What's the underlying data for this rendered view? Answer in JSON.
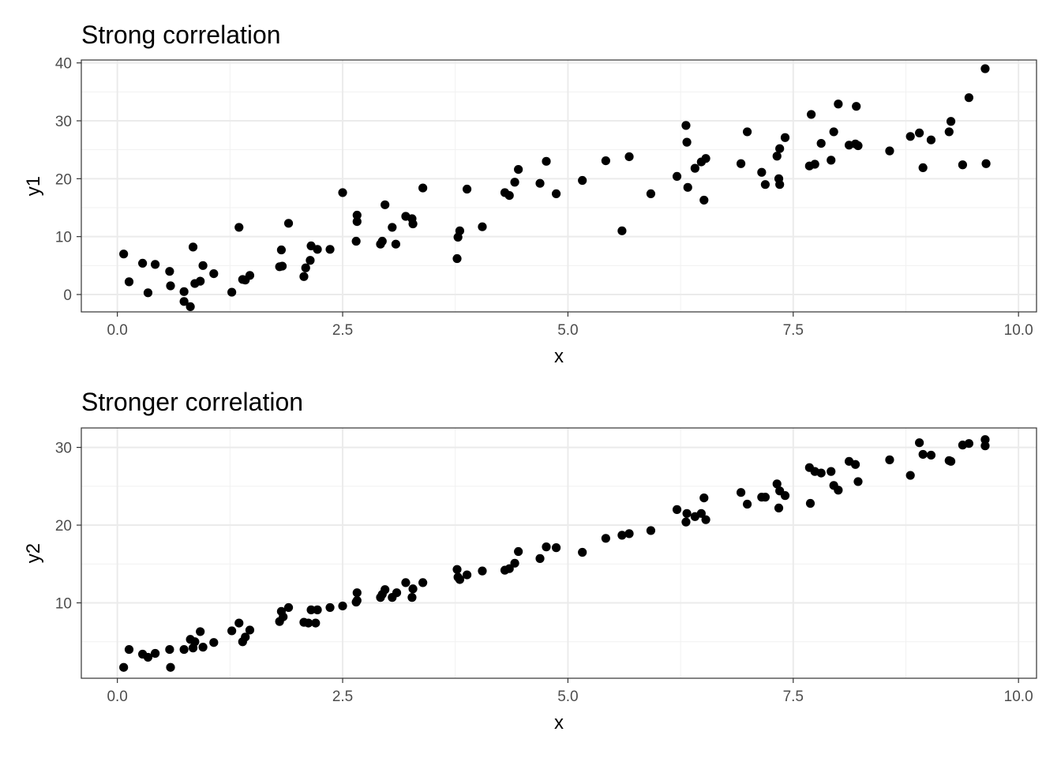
{
  "chart_data": [
    {
      "type": "scatter",
      "title": "Strong correlation",
      "xlabel": "x",
      "ylabel": "y1",
      "xlim": [
        -0.4,
        10.2
      ],
      "ylim": [
        -3,
        40.5
      ],
      "x_ticks": [
        0,
        2.5,
        5,
        7.5,
        10
      ],
      "x_tick_labels": [
        "0.0",
        "2.5",
        "5.0",
        "7.5",
        "10.0"
      ],
      "y_ticks": [
        0,
        10,
        20,
        30,
        40
      ],
      "y_tick_labels": [
        "0",
        "10",
        "20",
        "30",
        "40"
      ],
      "grid": true,
      "point_color": "#000000",
      "points": [
        [
          0.07,
          7.0
        ],
        [
          0.13,
          2.2
        ],
        [
          0.28,
          5.4
        ],
        [
          0.34,
          0.3
        ],
        [
          0.42,
          5.2
        ],
        [
          0.58,
          4.0
        ],
        [
          0.59,
          1.5
        ],
        [
          0.74,
          0.5
        ],
        [
          0.74,
          -1.2
        ],
        [
          0.81,
          -2.1
        ],
        [
          0.84,
          8.2
        ],
        [
          0.86,
          1.9
        ],
        [
          0.92,
          2.3
        ],
        [
          0.95,
          5.0
        ],
        [
          1.07,
          3.6
        ],
        [
          1.27,
          0.4
        ],
        [
          1.35,
          11.6
        ],
        [
          1.39,
          2.6
        ],
        [
          1.42,
          2.5
        ],
        [
          1.47,
          3.3
        ],
        [
          1.8,
          4.8
        ],
        [
          1.82,
          7.7
        ],
        [
          1.83,
          4.9
        ],
        [
          1.9,
          12.3
        ],
        [
          2.07,
          3.1
        ],
        [
          2.09,
          4.6
        ],
        [
          2.14,
          5.9
        ],
        [
          2.15,
          8.4
        ],
        [
          2.22,
          7.8
        ],
        [
          2.36,
          7.8
        ],
        [
          2.5,
          17.6
        ],
        [
          2.65,
          9.2
        ],
        [
          2.66,
          12.6
        ],
        [
          2.66,
          13.7
        ],
        [
          2.92,
          8.7
        ],
        [
          2.94,
          9.2
        ],
        [
          2.97,
          15.5
        ],
        [
          3.05,
          11.6
        ],
        [
          3.09,
          8.7
        ],
        [
          3.2,
          13.5
        ],
        [
          3.27,
          13.1
        ],
        [
          3.28,
          12.2
        ],
        [
          3.39,
          18.4
        ],
        [
          3.77,
          6.2
        ],
        [
          3.78,
          9.9
        ],
        [
          3.8,
          11.0
        ],
        [
          3.88,
          18.2
        ],
        [
          4.05,
          11.7
        ],
        [
          4.3,
          17.6
        ],
        [
          4.35,
          17.1
        ],
        [
          4.41,
          19.4
        ],
        [
          4.45,
          21.6
        ],
        [
          4.69,
          19.2
        ],
        [
          4.76,
          23.0
        ],
        [
          4.87,
          17.4
        ],
        [
          5.16,
          19.7
        ],
        [
          5.42,
          23.1
        ],
        [
          5.6,
          11.0
        ],
        [
          5.68,
          23.8
        ],
        [
          5.92,
          17.4
        ],
        [
          6.21,
          20.4
        ],
        [
          6.31,
          29.2
        ],
        [
          6.32,
          26.3
        ],
        [
          6.33,
          18.5
        ],
        [
          6.41,
          21.8
        ],
        [
          6.48,
          22.9
        ],
        [
          6.51,
          16.3
        ],
        [
          6.53,
          23.5
        ],
        [
          6.92,
          22.6
        ],
        [
          6.99,
          28.1
        ],
        [
          7.15,
          21.1
        ],
        [
          7.19,
          19.0
        ],
        [
          7.32,
          23.9
        ],
        [
          7.34,
          20.0
        ],
        [
          7.35,
          25.2
        ],
        [
          7.35,
          19.0
        ],
        [
          7.41,
          27.1
        ],
        [
          7.68,
          22.2
        ],
        [
          7.7,
          31.1
        ],
        [
          7.74,
          22.5
        ],
        [
          7.81,
          26.1
        ],
        [
          7.92,
          23.2
        ],
        [
          7.95,
          28.1
        ],
        [
          8.0,
          32.9
        ],
        [
          8.12,
          25.8
        ],
        [
          8.19,
          26.0
        ],
        [
          8.2,
          32.5
        ],
        [
          8.22,
          25.7
        ],
        [
          8.57,
          24.8
        ],
        [
          8.8,
          27.3
        ],
        [
          8.9,
          27.9
        ],
        [
          8.94,
          21.9
        ],
        [
          9.03,
          26.7
        ],
        [
          9.23,
          28.1
        ],
        [
          9.25,
          29.9
        ],
        [
          9.38,
          22.4
        ],
        [
          9.45,
          34.0
        ],
        [
          9.63,
          39.0
        ],
        [
          9.64,
          22.6
        ]
      ]
    },
    {
      "type": "scatter",
      "title": "Stronger correlation",
      "xlabel": "x",
      "ylabel": "y2",
      "xlim": [
        -0.4,
        10.2
      ],
      "ylim": [
        0.3,
        32.5
      ],
      "x_ticks": [
        0,
        2.5,
        5,
        7.5,
        10
      ],
      "x_tick_labels": [
        "0.0",
        "2.5",
        "5.0",
        "7.5",
        "10.0"
      ],
      "y_ticks": [
        10,
        20,
        30
      ],
      "y_tick_labels": [
        "10",
        "20",
        "30"
      ],
      "grid": true,
      "point_color": "#000000",
      "points": [
        [
          0.07,
          1.7
        ],
        [
          0.13,
          4.0
        ],
        [
          0.28,
          3.4
        ],
        [
          0.34,
          3.0
        ],
        [
          0.42,
          3.5
        ],
        [
          0.58,
          4.0
        ],
        [
          0.59,
          1.7
        ],
        [
          0.74,
          4.0
        ],
        [
          0.81,
          5.3
        ],
        [
          0.84,
          4.2
        ],
        [
          0.86,
          5.0
        ],
        [
          0.92,
          6.3
        ],
        [
          0.95,
          4.3
        ],
        [
          1.07,
          4.9
        ],
        [
          1.27,
          6.4
        ],
        [
          1.35,
          7.4
        ],
        [
          1.39,
          5.0
        ],
        [
          1.42,
          5.6
        ],
        [
          1.47,
          6.5
        ],
        [
          1.8,
          7.6
        ],
        [
          1.82,
          8.9
        ],
        [
          1.84,
          8.2
        ],
        [
          1.9,
          9.4
        ],
        [
          2.07,
          7.5
        ],
        [
          2.12,
          7.4
        ],
        [
          2.15,
          9.1
        ],
        [
          2.2,
          7.4
        ],
        [
          2.22,
          9.1
        ],
        [
          2.36,
          9.4
        ],
        [
          2.5,
          9.6
        ],
        [
          2.65,
          10.1
        ],
        [
          2.66,
          10.3
        ],
        [
          2.66,
          11.3
        ],
        [
          2.92,
          10.7
        ],
        [
          2.94,
          11.1
        ],
        [
          2.97,
          11.7
        ],
        [
          3.05,
          10.7
        ],
        [
          3.1,
          11.3
        ],
        [
          3.2,
          12.6
        ],
        [
          3.27,
          10.7
        ],
        [
          3.28,
          11.8
        ],
        [
          3.39,
          12.6
        ],
        [
          3.77,
          14.3
        ],
        [
          3.78,
          13.3
        ],
        [
          3.8,
          13.0
        ],
        [
          3.88,
          13.6
        ],
        [
          4.05,
          14.1
        ],
        [
          4.3,
          14.2
        ],
        [
          4.35,
          14.4
        ],
        [
          4.41,
          15.1
        ],
        [
          4.45,
          16.6
        ],
        [
          4.69,
          15.7
        ],
        [
          4.76,
          17.2
        ],
        [
          4.87,
          17.1
        ],
        [
          5.16,
          16.5
        ],
        [
          5.42,
          18.3
        ],
        [
          5.6,
          18.7
        ],
        [
          5.68,
          18.9
        ],
        [
          5.92,
          19.3
        ],
        [
          6.21,
          22.0
        ],
        [
          6.31,
          20.4
        ],
        [
          6.32,
          21.5
        ],
        [
          6.41,
          21.1
        ],
        [
          6.48,
          21.5
        ],
        [
          6.51,
          23.5
        ],
        [
          6.53,
          20.7
        ],
        [
          6.92,
          24.2
        ],
        [
          6.99,
          22.7
        ],
        [
          7.15,
          23.6
        ],
        [
          7.19,
          23.6
        ],
        [
          7.32,
          25.3
        ],
        [
          7.34,
          22.2
        ],
        [
          7.35,
          24.4
        ],
        [
          7.41,
          23.8
        ],
        [
          7.68,
          27.4
        ],
        [
          7.69,
          22.8
        ],
        [
          7.74,
          26.9
        ],
        [
          7.81,
          26.7
        ],
        [
          7.92,
          26.9
        ],
        [
          7.95,
          25.1
        ],
        [
          8.0,
          24.5
        ],
        [
          8.12,
          28.2
        ],
        [
          8.19,
          27.8
        ],
        [
          8.22,
          25.6
        ],
        [
          8.57,
          28.4
        ],
        [
          8.8,
          26.4
        ],
        [
          8.9,
          30.6
        ],
        [
          8.94,
          29.1
        ],
        [
          9.03,
          29.0
        ],
        [
          9.23,
          28.3
        ],
        [
          9.25,
          28.2
        ],
        [
          9.38,
          30.3
        ],
        [
          9.45,
          30.5
        ],
        [
          9.63,
          30.2
        ],
        [
          9.63,
          31.0
        ]
      ]
    }
  ]
}
